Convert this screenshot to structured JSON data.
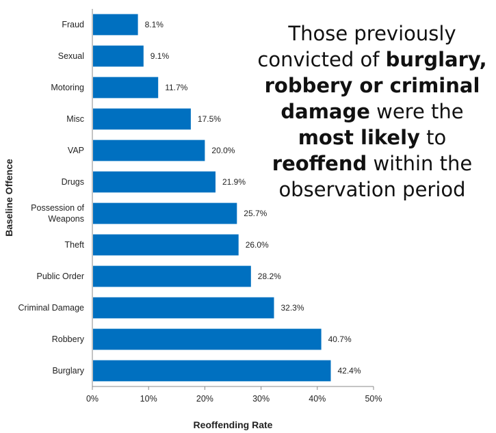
{
  "chart_data": {
    "type": "bar",
    "orientation": "horizontal",
    "categories": [
      "Fraud",
      "Sexual",
      "Motoring",
      "Misc",
      "VAP",
      "Drugs",
      "Possession of Weapons",
      "Theft",
      "Public Order",
      "Criminal Damage",
      "Robbery",
      "Burglary"
    ],
    "category_lines": [
      [
        "Fraud"
      ],
      [
        "Sexual"
      ],
      [
        "Motoring"
      ],
      [
        "Misc"
      ],
      [
        "VAP"
      ],
      [
        "Drugs"
      ],
      [
        "Possession of",
        "Weapons"
      ],
      [
        "Theft"
      ],
      [
        "Public Order"
      ],
      [
        "Criminal Damage"
      ],
      [
        "Robbery"
      ],
      [
        "Burglary"
      ]
    ],
    "values": [
      8.1,
      9.1,
      11.7,
      17.5,
      20.0,
      21.9,
      25.7,
      26.0,
      28.2,
      32.3,
      40.7,
      42.4
    ],
    "value_labels": [
      "8.1%",
      "9.1%",
      "11.7%",
      "17.5%",
      "20.0%",
      "21.9%",
      "25.7%",
      "26.0%",
      "28.2%",
      "32.3%",
      "40.7%",
      "42.4%"
    ],
    "xlabel": "Reoffending Rate",
    "ylabel": "Baseline Offence",
    "xlim": [
      0,
      50
    ],
    "xticks": [
      "0%",
      "10%",
      "20%",
      "30%",
      "40%",
      "50%"
    ],
    "bar_color": "#0070C0",
    "grid": false
  },
  "annotation": {
    "segments": [
      {
        "text": "Those previously convicted of ",
        "bold": false
      },
      {
        "text": "burglary, robbery or criminal damage",
        "bold": true
      },
      {
        "text": " were the ",
        "bold": false
      },
      {
        "text": "most likely",
        "bold": true
      },
      {
        "text": " to ",
        "bold": false
      },
      {
        "text": "reoffend",
        "bold": true
      },
      {
        "text": " within the observation period",
        "bold": false
      }
    ]
  }
}
